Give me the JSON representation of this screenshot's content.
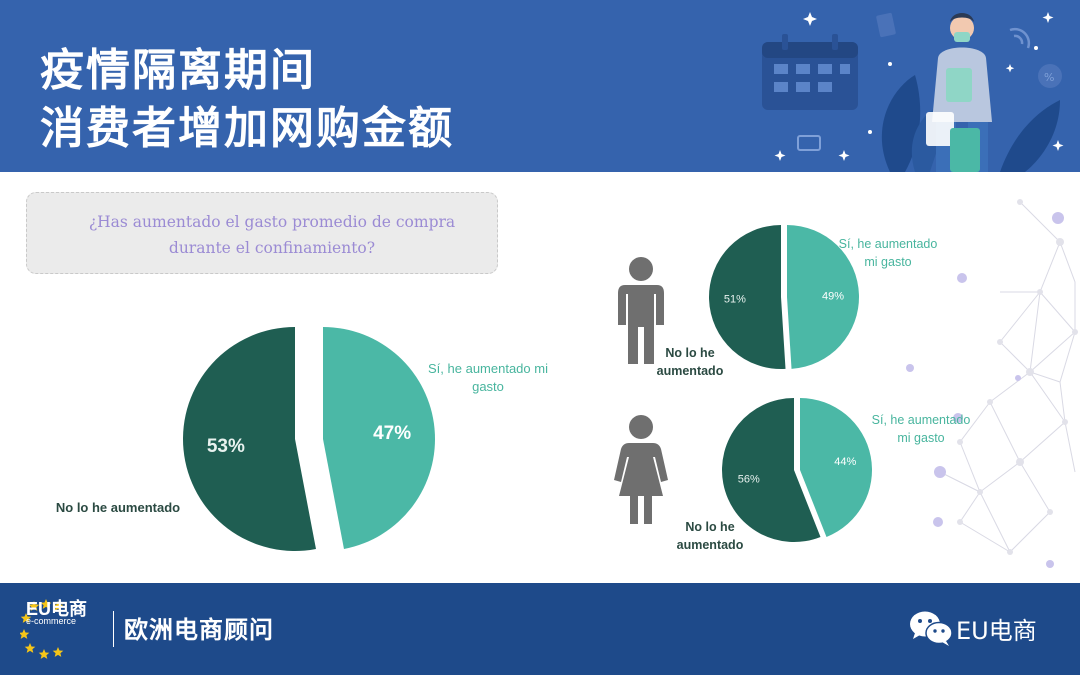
{
  "header": {
    "title_line1": "疫情隔离期间",
    "title_line2": "消费者增加网购金额"
  },
  "question": {
    "line1": "¿Has aumentado el gasto promedio de compra",
    "line2": "durante el confinamiento?"
  },
  "colors": {
    "header_bg": "#3563ad",
    "footer_bg": "#1e4a8a",
    "no_dark_green": "#1f5e52",
    "yes_teal": "#4bb8a6",
    "label_green": "#48b59e",
    "label_dark": "#2b4a42",
    "question_purple": "#9b8bd4",
    "person_gray": "#6f6f6f"
  },
  "chart_data": [
    {
      "type": "pie",
      "group": "total",
      "labels": [
        "Sí, he aumentado mi gasto",
        "No lo he aumentado"
      ],
      "values": [
        47,
        53
      ],
      "value_labels": [
        "47%",
        "53%"
      ],
      "exploded": "Sí, he aumentado mi gasto"
    },
    {
      "type": "pie",
      "group": "hombre",
      "icon": "man-icon",
      "labels": [
        "Sí, he aumentado mi gasto",
        "No lo he aumentado"
      ],
      "values": [
        49,
        51
      ],
      "value_labels": [
        "49%",
        "51%"
      ]
    },
    {
      "type": "pie",
      "group": "mujer",
      "icon": "woman-icon",
      "labels": [
        "Sí, he aumentado mi gasto",
        "No lo he aumentado"
      ],
      "values": [
        44,
        56
      ],
      "value_labels": [
        "44%",
        "56%"
      ]
    }
  ],
  "labels": {
    "main_yes_l1": "Sí, he aumentado mi",
    "main_yes_l2": "gasto",
    "main_no": "No lo he aumentado",
    "small_yes_l1": "Sí, he aumentado",
    "small_yes_l2": "mi gasto",
    "small_no_l1": "No lo he",
    "small_no_l2": "aumentado"
  },
  "footer": {
    "logo_main": "EU电商",
    "logo_sub": "e-commerce",
    "name": "欧洲电商顾问",
    "wechat_account": "EU电商",
    "wechat_icon": "wechat-icon"
  }
}
